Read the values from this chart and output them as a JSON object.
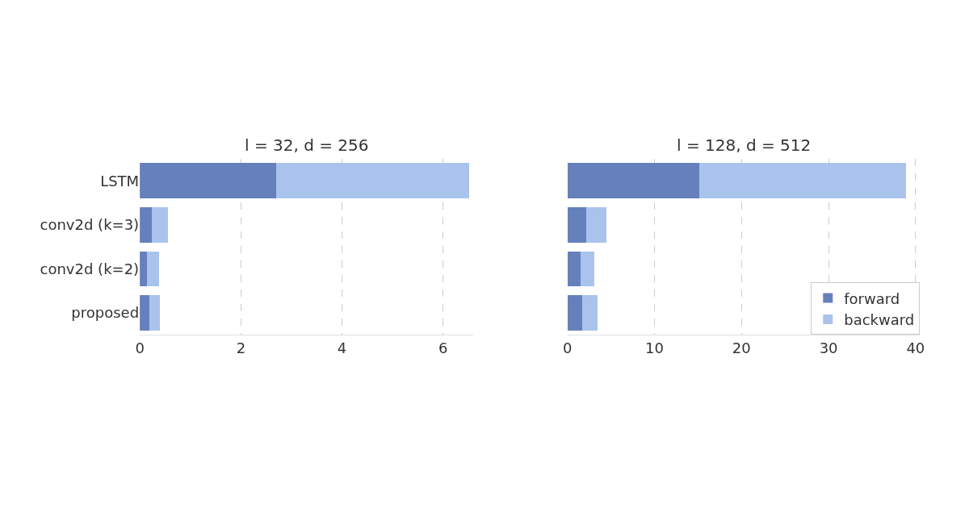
{
  "chart_data": [
    {
      "type": "bar",
      "orientation": "horizontal",
      "stacked": true,
      "title": "l = 32, d = 256",
      "categories": [
        "LSTM",
        "conv2d (k=3)",
        "conv2d (k=2)",
        "proposed"
      ],
      "series": [
        {
          "color": "#6680bc",
          "values": [
            2.69,
            0.24,
            0.14,
            0.19
          ]
        },
        {
          "color": "#a9c3ec",
          "values": [
            3.83,
            0.31,
            0.24,
            0.21
          ]
        }
      ],
      "xlim": [
        0,
        6.6
      ],
      "xticks": [
        0,
        2,
        4,
        6
      ],
      "grid": "x",
      "legend": false
    },
    {
      "type": "bar",
      "orientation": "horizontal",
      "stacked": true,
      "title": "l = 128, d = 512",
      "categories": [
        null,
        null,
        null,
        null
      ],
      "series": [
        {
          "name": "forward",
          "color": "#6680bc",
          "values": [
            15.1,
            2.2,
            1.5,
            1.7
          ]
        },
        {
          "name": "backward",
          "color": "#a9c3ec",
          "values": [
            23.8,
            2.3,
            1.6,
            1.8
          ]
        }
      ],
      "xlim": [
        0,
        40.5
      ],
      "xticks": [
        0,
        10,
        20,
        30,
        40
      ],
      "grid": "x",
      "legend": "bottom right",
      "tick_labels": "x"
    }
  ]
}
